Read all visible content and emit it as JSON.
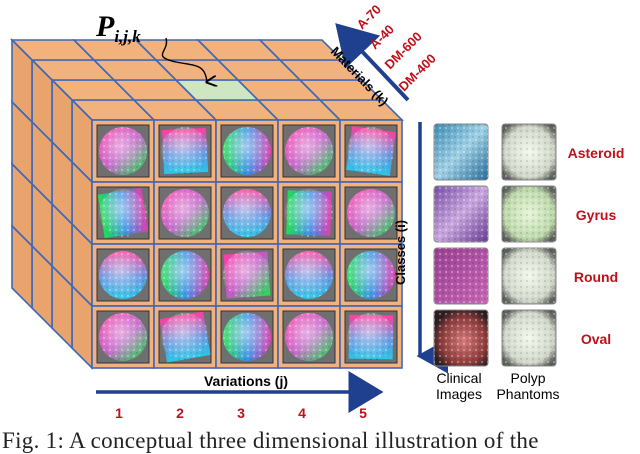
{
  "cube": {
    "point_label": "P",
    "point_subscript": "i,j,k",
    "materials_axis_label": "Materials (k)",
    "materials": [
      "A-70",
      "A-40",
      "DM-600",
      "DM-400"
    ],
    "classes_axis_label": "Classes (i)",
    "variations_axis_label": "Variations (j)",
    "variations": [
      "1",
      "2",
      "3",
      "4",
      "5"
    ],
    "face_color": "#f2b27d",
    "grid_color": "#3f68b7",
    "highlight_color": "#cfe6c2",
    "axis_color": "#1f3f8f",
    "label_color": "#c0101a"
  },
  "samples": {
    "column_headers": [
      {
        "line1": "Clinical",
        "line2": "Images"
      },
      {
        "line1": "Polyp",
        "line2": "Phantoms"
      }
    ],
    "classes": [
      "Asteroid",
      "Gyrus",
      "Round",
      "Oval"
    ]
  },
  "caption": "Fig. 1: A conceptual three dimensional illustration of the"
}
